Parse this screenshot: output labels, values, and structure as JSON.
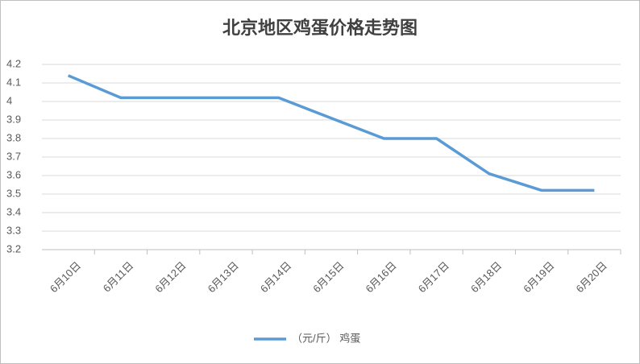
{
  "chart_data": {
    "type": "line",
    "title": "北京地区鸡蛋价格走势图",
    "categories": [
      "6月10日",
      "6月11日",
      "6月12日",
      "6月13日",
      "6月14日",
      "6月15日",
      "6月16日",
      "6月17日",
      "6月18日",
      "6月19日",
      "6月20日"
    ],
    "series": [
      {
        "name": "（元/斤） 鸡蛋",
        "color": "#5b9bd5",
        "values": [
          4.14,
          4.02,
          4.02,
          4.02,
          4.02,
          3.91,
          3.8,
          3.8,
          3.61,
          3.52,
          3.52
        ]
      }
    ],
    "ylim": [
      3.2,
      4.2
    ],
    "yticks": [
      3.2,
      3.3,
      3.4,
      3.5,
      3.6,
      3.7,
      3.8,
      3.9,
      4,
      4.1,
      4.2
    ],
    "grid": true,
    "legend": "bottom"
  }
}
